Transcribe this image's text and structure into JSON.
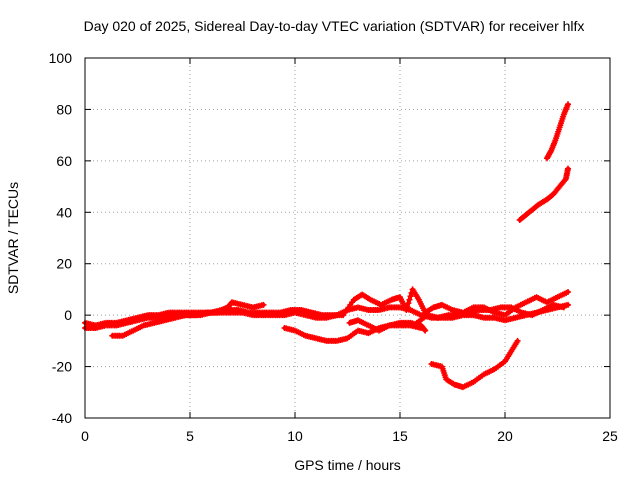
{
  "chart_data": {
    "type": "scatter",
    "title": "Day 020 of 2025, Sidereal Day-to-day VTEC variation (SDTVAR) for receiver hlfx",
    "xlabel": "GPS time / hours",
    "ylabel": "SDTVAR / TECUs",
    "xlim": [
      0,
      25
    ],
    "ylim": [
      -40,
      100
    ],
    "xticks": [
      0,
      5,
      10,
      15,
      20,
      25
    ],
    "yticks": [
      -40,
      -20,
      0,
      20,
      40,
      60,
      80,
      100
    ],
    "grid": true,
    "series_color": "#ff0000",
    "series": [
      {
        "values": [
          [
            0,
            -3
          ],
          [
            0.5,
            -4
          ],
          [
            1,
            -3
          ],
          [
            1.5,
            -3
          ],
          [
            2,
            -2
          ],
          [
            2.5,
            -1
          ],
          [
            3,
            0
          ],
          [
            3.5,
            0
          ],
          [
            4,
            1
          ],
          [
            4.5,
            1
          ],
          [
            5,
            1
          ],
          [
            5.5,
            1
          ],
          [
            6,
            1
          ],
          [
            6.5,
            2
          ],
          [
            6.8,
            3
          ],
          [
            7,
            5
          ],
          [
            7.5,
            4
          ],
          [
            8,
            3
          ],
          [
            8.5,
            4
          ]
        ]
      },
      {
        "values": [
          [
            0,
            -5
          ],
          [
            0.5,
            -5
          ],
          [
            1,
            -4
          ],
          [
            1.5,
            -4
          ],
          [
            2,
            -3
          ],
          [
            2.5,
            -2
          ],
          [
            3,
            -1
          ],
          [
            3.5,
            -1
          ],
          [
            4,
            0
          ],
          [
            4.5,
            0
          ],
          [
            5,
            0
          ],
          [
            5.5,
            0
          ],
          [
            6,
            1
          ],
          [
            6.5,
            1
          ],
          [
            7,
            1
          ],
          [
            7.5,
            1
          ],
          [
            8,
            0
          ],
          [
            8.5,
            0
          ],
          [
            9,
            0
          ],
          [
            9.5,
            0
          ],
          [
            10,
            1
          ],
          [
            10.5,
            0
          ],
          [
            11,
            -1
          ],
          [
            11.5,
            -1
          ],
          [
            12,
            0
          ],
          [
            12.5,
            2
          ],
          [
            13,
            3
          ],
          [
            13.5,
            2
          ],
          [
            14,
            2
          ],
          [
            14.5,
            3
          ],
          [
            15,
            3
          ],
          [
            15.5,
            2
          ],
          [
            16,
            0
          ],
          [
            16.5,
            -1
          ],
          [
            17,
            -1
          ],
          [
            17.5,
            -1
          ],
          [
            18,
            0
          ],
          [
            18.5,
            0
          ],
          [
            19,
            -1
          ],
          [
            19.5,
            -1
          ],
          [
            20,
            -2
          ],
          [
            20.5,
            -1
          ],
          [
            21,
            0
          ],
          [
            21.5,
            1
          ],
          [
            22,
            2
          ],
          [
            22.5,
            3
          ],
          [
            23,
            4
          ]
        ]
      },
      {
        "values": [
          [
            1.3,
            -8
          ],
          [
            1.8,
            -8
          ],
          [
            2.3,
            -6
          ],
          [
            2.8,
            -4
          ],
          [
            3.3,
            -3
          ],
          [
            3.8,
            -2
          ],
          [
            4.3,
            -1
          ],
          [
            4.8,
            0
          ],
          [
            5.3,
            0
          ],
          [
            5.8,
            1
          ],
          [
            6.3,
            1
          ],
          [
            6.8,
            2
          ],
          [
            7.3,
            2
          ],
          [
            7.8,
            1
          ],
          [
            8.3,
            1
          ],
          [
            8.8,
            1
          ],
          [
            9.3,
            1
          ],
          [
            9.8,
            2
          ],
          [
            10.3,
            2
          ],
          [
            10.8,
            1
          ],
          [
            11.3,
            0
          ],
          [
            11.8,
            0
          ],
          [
            12.3,
            0
          ],
          [
            12.8,
            6
          ],
          [
            13.2,
            8
          ],
          [
            13.6,
            6
          ],
          [
            14.1,
            4
          ],
          [
            14.6,
            6
          ],
          [
            15,
            7
          ],
          [
            15.3,
            2
          ],
          [
            15.6,
            10
          ],
          [
            15.9,
            6
          ],
          [
            16.2,
            1
          ],
          [
            16.6,
            3
          ],
          [
            17,
            4
          ],
          [
            17.5,
            2
          ],
          [
            18,
            1
          ],
          [
            18.5,
            3
          ],
          [
            19,
            3
          ],
          [
            19.5,
            1
          ],
          [
            20,
            0
          ],
          [
            20.5,
            3
          ],
          [
            21,
            5
          ],
          [
            21.5,
            7
          ],
          [
            22,
            5
          ],
          [
            22.5,
            7
          ],
          [
            23,
            9
          ]
        ]
      },
      {
        "values": [
          [
            15.8,
            -3
          ],
          [
            16.3,
            0
          ],
          [
            16.8,
            -1
          ],
          [
            17.3,
            0
          ],
          [
            17.8,
            0
          ],
          [
            18.3,
            1
          ],
          [
            18.8,
            2
          ],
          [
            19.3,
            2
          ],
          [
            19.8,
            3
          ],
          [
            20.3,
            3
          ],
          [
            20.8,
            1
          ],
          [
            21.3,
            0
          ],
          [
            21.8,
            2
          ],
          [
            22.3,
            4
          ],
          [
            22.8,
            3
          ]
        ]
      },
      {
        "values": [
          [
            9.5,
            -5
          ],
          [
            10,
            -6
          ],
          [
            10.5,
            -8
          ],
          [
            11,
            -9
          ],
          [
            11.5,
            -10
          ],
          [
            12,
            -10
          ],
          [
            12.5,
            -9
          ],
          [
            13,
            -6
          ],
          [
            13.5,
            -7
          ],
          [
            14,
            -5
          ],
          [
            14.5,
            -4
          ],
          [
            15,
            -3
          ],
          [
            15.5,
            -3
          ],
          [
            16,
            -4
          ],
          [
            16.2,
            -6
          ]
        ]
      },
      {
        "values": [
          [
            12.6,
            -3
          ],
          [
            13,
            -2
          ],
          [
            13.5,
            -4
          ],
          [
            14,
            -6
          ],
          [
            14.5,
            -4
          ],
          [
            15,
            -4
          ],
          [
            15.5,
            -4
          ],
          [
            16,
            -5
          ]
        ]
      },
      {
        "values": [
          [
            16.5,
            -19
          ],
          [
            17,
            -20
          ],
          [
            17.2,
            -25
          ],
          [
            17.6,
            -27
          ],
          [
            18,
            -28
          ],
          [
            18.5,
            -26
          ],
          [
            19,
            -23
          ],
          [
            19.5,
            -21
          ],
          [
            20,
            -18
          ],
          [
            20.3,
            -14
          ],
          [
            20.6,
            -10
          ]
        ]
      },
      {
        "values": [
          [
            20.7,
            37
          ],
          [
            21,
            39
          ],
          [
            21.3,
            41
          ],
          [
            21.6,
            43
          ],
          [
            22,
            45
          ],
          [
            22.3,
            47
          ],
          [
            22.6,
            50
          ],
          [
            22.9,
            53
          ],
          [
            23,
            57
          ]
        ]
      },
      {
        "values": [
          [
            22,
            61
          ],
          [
            22.2,
            64
          ],
          [
            22.4,
            68
          ],
          [
            22.6,
            73
          ],
          [
            22.8,
            78
          ],
          [
            23,
            82
          ]
        ]
      }
    ]
  }
}
